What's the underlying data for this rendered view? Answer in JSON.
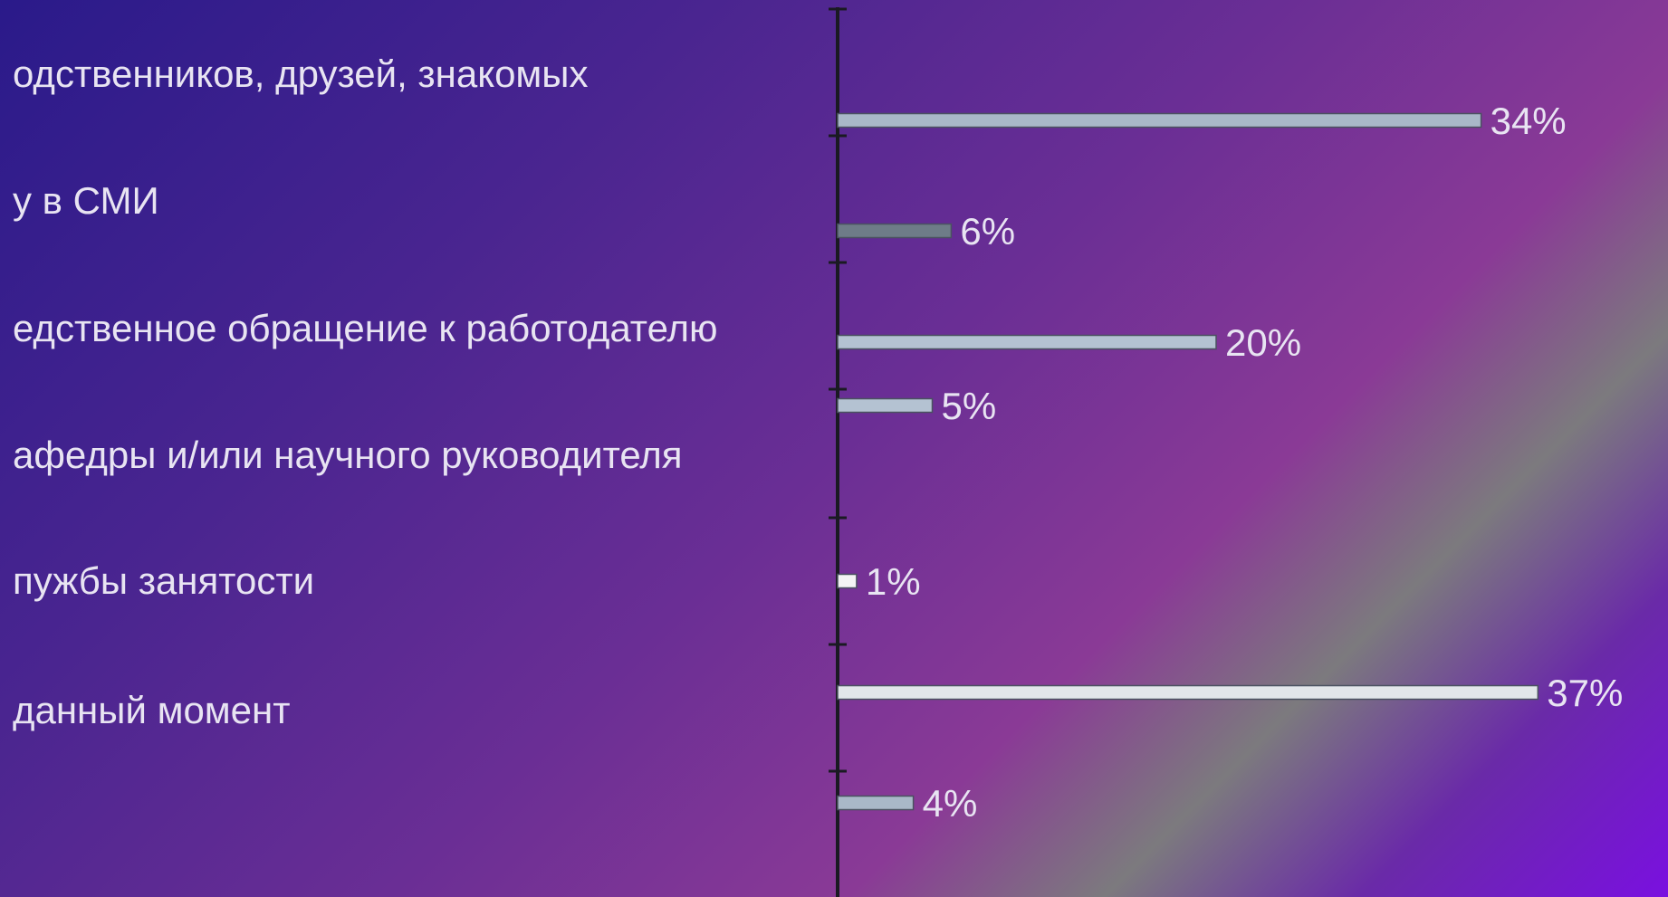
{
  "chart_data": {
    "type": "bar",
    "orientation": "horizontal",
    "categories": [
      "одственников, друзей, знакомых",
      "у в СМИ",
      "едственное обращение к работодателю",
      "афедры и/или научного руководителя",
      "пужбы занятости",
      " данный момент",
      ""
    ],
    "values": [
      34,
      6,
      20,
      5,
      1,
      37,
      4
    ],
    "value_labels": [
      "34%",
      "6%",
      "20%",
      "5%",
      "1%",
      "37%",
      "4%"
    ],
    "bar_colors": [
      "#a9b8c8",
      "#6e7c88",
      "#b4c2d2",
      "#b4c2d2",
      "#f4f4f4",
      "#e2e6ea",
      "#a9b8c8"
    ],
    "xlim": [
      0,
      37
    ],
    "grid": false,
    "legend": "none",
    "title": "",
    "xlabel": "",
    "ylabel": ""
  }
}
